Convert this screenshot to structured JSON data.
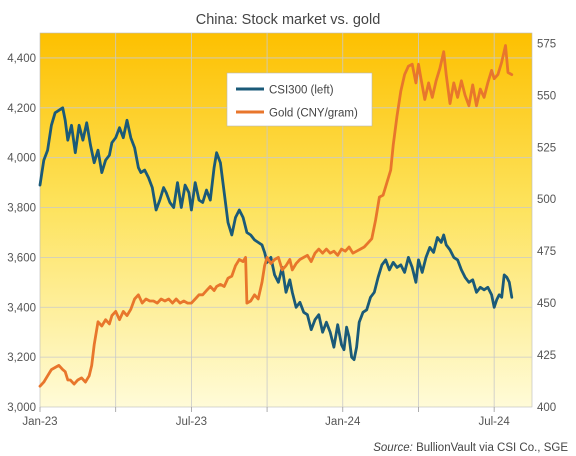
{
  "chart_data": {
    "type": "line",
    "title": "China: Stock market vs. gold",
    "source_label": "Source:",
    "source_text": "BullionVault via CSI Co., SGE",
    "left_axis": {
      "ylim": [
        3000,
        4500
      ],
      "ticks": [
        3000,
        3200,
        3400,
        3600,
        3800,
        4000,
        4200,
        4400
      ],
      "tick_labels": [
        "3,000",
        "3,200",
        "3,400",
        "3,600",
        "3,800",
        "4,000",
        "4,200",
        "4,400"
      ]
    },
    "right_axis": {
      "ylim": [
        400,
        580
      ],
      "ticks": [
        400,
        425,
        450,
        475,
        500,
        525,
        550,
        575
      ],
      "tick_labels": [
        "400",
        "425",
        "450",
        "475",
        "500",
        "525",
        "550",
        "575"
      ]
    },
    "x_axis": {
      "xlim": [
        0,
        19.5
      ],
      "ticks": [
        0,
        3,
        6,
        9,
        12,
        15,
        18
      ],
      "tick_labels": [
        "Jan-23",
        "",
        "Jul-23",
        "",
        "Jan-24",
        "",
        "Jul-24"
      ]
    },
    "grid": true,
    "legend": "top-center",
    "series": [
      {
        "name": "CSI300 (left)",
        "axis": "left",
        "color": "#1a5a78",
        "points": [
          [
            0.0,
            3890
          ],
          [
            0.15,
            3990
          ],
          [
            0.3,
            4030
          ],
          [
            0.45,
            4130
          ],
          [
            0.6,
            4180
          ],
          [
            0.75,
            4190
          ],
          [
            0.9,
            4200
          ],
          [
            1.0,
            4150
          ],
          [
            1.1,
            4070
          ],
          [
            1.25,
            4130
          ],
          [
            1.4,
            4020
          ],
          [
            1.55,
            4130
          ],
          [
            1.7,
            4070
          ],
          [
            1.85,
            4140
          ],
          [
            2.0,
            4050
          ],
          [
            2.15,
            3980
          ],
          [
            2.3,
            4030
          ],
          [
            2.45,
            3940
          ],
          [
            2.6,
            3990
          ],
          [
            2.75,
            4010
          ],
          [
            2.85,
            4060
          ],
          [
            3.0,
            4080
          ],
          [
            3.15,
            4120
          ],
          [
            3.3,
            4080
          ],
          [
            3.45,
            4150
          ],
          [
            3.6,
            4080
          ],
          [
            3.75,
            4040
          ],
          [
            3.9,
            3960
          ],
          [
            4.0,
            3940
          ],
          [
            4.15,
            3950
          ],
          [
            4.3,
            3920
          ],
          [
            4.45,
            3880
          ],
          [
            4.6,
            3790
          ],
          [
            4.75,
            3830
          ],
          [
            4.9,
            3880
          ],
          [
            5.0,
            3860
          ],
          [
            5.15,
            3820
          ],
          [
            5.3,
            3800
          ],
          [
            5.45,
            3900
          ],
          [
            5.6,
            3800
          ],
          [
            5.75,
            3890
          ],
          [
            5.9,
            3860
          ],
          [
            6.0,
            3790
          ],
          [
            6.15,
            3900
          ],
          [
            6.3,
            3830
          ],
          [
            6.45,
            3820
          ],
          [
            6.6,
            3870
          ],
          [
            6.75,
            3830
          ],
          [
            6.9,
            3960
          ],
          [
            7.0,
            4020
          ],
          [
            7.15,
            3980
          ],
          [
            7.3,
            3860
          ],
          [
            7.45,
            3740
          ],
          [
            7.6,
            3690
          ],
          [
            7.75,
            3760
          ],
          [
            7.9,
            3790
          ],
          [
            8.05,
            3760
          ],
          [
            8.2,
            3700
          ],
          [
            8.35,
            3690
          ],
          [
            8.5,
            3670
          ],
          [
            8.65,
            3660
          ],
          [
            8.8,
            3650
          ],
          [
            8.9,
            3620
          ],
          [
            9.0,
            3580
          ],
          [
            9.15,
            3600
          ],
          [
            9.3,
            3530
          ],
          [
            9.45,
            3500
          ],
          [
            9.6,
            3560
          ],
          [
            9.75,
            3460
          ],
          [
            9.9,
            3510
          ],
          [
            10.0,
            3460
          ],
          [
            10.15,
            3400
          ],
          [
            10.3,
            3420
          ],
          [
            10.45,
            3380
          ],
          [
            10.6,
            3370
          ],
          [
            10.75,
            3310
          ],
          [
            10.9,
            3350
          ],
          [
            11.05,
            3370
          ],
          [
            11.2,
            3300
          ],
          [
            11.35,
            3340
          ],
          [
            11.5,
            3300
          ],
          [
            11.65,
            3240
          ],
          [
            11.8,
            3330
          ],
          [
            11.95,
            3250
          ],
          [
            12.05,
            3230
          ],
          [
            12.15,
            3320
          ],
          [
            12.25,
            3280
          ],
          [
            12.35,
            3200
          ],
          [
            12.45,
            3190
          ],
          [
            12.55,
            3240
          ],
          [
            12.65,
            3340
          ],
          [
            12.8,
            3380
          ],
          [
            12.95,
            3390
          ],
          [
            13.1,
            3440
          ],
          [
            13.25,
            3460
          ],
          [
            13.4,
            3520
          ],
          [
            13.55,
            3570
          ],
          [
            13.7,
            3590
          ],
          [
            13.85,
            3550
          ],
          [
            14.0,
            3580
          ],
          [
            14.15,
            3560
          ],
          [
            14.3,
            3570
          ],
          [
            14.45,
            3540
          ],
          [
            14.6,
            3600
          ],
          [
            14.75,
            3560
          ],
          [
            14.9,
            3500
          ],
          [
            15.0,
            3590
          ],
          [
            15.15,
            3540
          ],
          [
            15.3,
            3600
          ],
          [
            15.45,
            3640
          ],
          [
            15.6,
            3620
          ],
          [
            15.75,
            3680
          ],
          [
            15.9,
            3660
          ],
          [
            16.0,
            3690
          ],
          [
            16.1,
            3650
          ],
          [
            16.25,
            3630
          ],
          [
            16.4,
            3600
          ],
          [
            16.55,
            3590
          ],
          [
            16.7,
            3550
          ],
          [
            16.85,
            3520
          ],
          [
            17.0,
            3500
          ],
          [
            17.15,
            3510
          ],
          [
            17.3,
            3460
          ],
          [
            17.45,
            3480
          ],
          [
            17.6,
            3470
          ],
          [
            17.75,
            3480
          ],
          [
            17.9,
            3450
          ],
          [
            18.0,
            3400
          ],
          [
            18.1,
            3430
          ],
          [
            18.2,
            3450
          ],
          [
            18.3,
            3440
          ],
          [
            18.4,
            3530
          ],
          [
            18.5,
            3520
          ],
          [
            18.6,
            3500
          ],
          [
            18.7,
            3440
          ]
        ]
      },
      {
        "name": "Gold (CNY/gram)",
        "axis": "right",
        "color": "#e8762c",
        "points": [
          [
            0.0,
            410
          ],
          [
            0.15,
            412
          ],
          [
            0.3,
            415
          ],
          [
            0.45,
            418
          ],
          [
            0.6,
            419
          ],
          [
            0.75,
            420
          ],
          [
            0.9,
            418
          ],
          [
            1.0,
            417
          ],
          [
            1.1,
            413
          ],
          [
            1.2,
            413
          ],
          [
            1.35,
            411
          ],
          [
            1.5,
            413
          ],
          [
            1.65,
            414
          ],
          [
            1.8,
            412
          ],
          [
            1.95,
            415
          ],
          [
            2.05,
            420
          ],
          [
            2.15,
            430
          ],
          [
            2.3,
            441
          ],
          [
            2.45,
            439
          ],
          [
            2.6,
            442
          ],
          [
            2.75,
            440
          ],
          [
            2.85,
            444
          ],
          [
            3.0,
            446
          ],
          [
            3.15,
            442
          ],
          [
            3.3,
            446
          ],
          [
            3.45,
            444
          ],
          [
            3.6,
            447
          ],
          [
            3.75,
            452
          ],
          [
            3.9,
            454
          ],
          [
            4.05,
            450
          ],
          [
            4.2,
            452
          ],
          [
            4.35,
            451
          ],
          [
            4.5,
            451
          ],
          [
            4.65,
            450
          ],
          [
            4.8,
            452
          ],
          [
            4.95,
            451
          ],
          [
            5.1,
            452
          ],
          [
            5.25,
            450
          ],
          [
            5.4,
            452
          ],
          [
            5.55,
            450
          ],
          [
            5.7,
            451
          ],
          [
            5.85,
            450
          ],
          [
            6.0,
            450
          ],
          [
            6.15,
            452
          ],
          [
            6.3,
            454
          ],
          [
            6.45,
            454
          ],
          [
            6.6,
            456
          ],
          [
            6.75,
            458
          ],
          [
            6.9,
            456
          ],
          [
            7.0,
            458
          ],
          [
            7.15,
            459
          ],
          [
            7.3,
            458
          ],
          [
            7.45,
            462
          ],
          [
            7.6,
            463
          ],
          [
            7.75,
            468
          ],
          [
            7.9,
            471
          ],
          [
            8.05,
            470
          ],
          [
            8.15,
            472
          ],
          [
            8.2,
            450
          ],
          [
            8.35,
            451
          ],
          [
            8.5,
            454
          ],
          [
            8.65,
            452
          ],
          [
            8.8,
            460
          ],
          [
            8.9,
            468
          ],
          [
            9.0,
            472
          ],
          [
            9.15,
            469
          ],
          [
            9.3,
            471
          ],
          [
            9.45,
            472
          ],
          [
            9.6,
            466
          ],
          [
            9.75,
            468
          ],
          [
            9.9,
            471
          ],
          [
            10.0,
            466
          ],
          [
            10.15,
            469
          ],
          [
            10.3,
            471
          ],
          [
            10.45,
            472
          ],
          [
            10.6,
            473
          ],
          [
            10.75,
            470
          ],
          [
            10.9,
            474
          ],
          [
            11.05,
            476
          ],
          [
            11.2,
            474
          ],
          [
            11.35,
            476
          ],
          [
            11.5,
            474
          ],
          [
            11.65,
            475
          ],
          [
            11.8,
            473
          ],
          [
            11.95,
            476
          ],
          [
            12.1,
            475
          ],
          [
            12.25,
            477
          ],
          [
            12.4,
            474
          ],
          [
            12.55,
            475
          ],
          [
            12.7,
            476
          ],
          [
            12.85,
            477
          ],
          [
            13.0,
            479
          ],
          [
            13.15,
            481
          ],
          [
            13.3,
            490
          ],
          [
            13.45,
            501
          ],
          [
            13.6,
            502
          ],
          [
            13.75,
            508
          ],
          [
            13.9,
            514
          ],
          [
            14.0,
            526
          ],
          [
            14.15,
            540
          ],
          [
            14.3,
            552
          ],
          [
            14.45,
            560
          ],
          [
            14.6,
            564
          ],
          [
            14.75,
            565
          ],
          [
            14.9,
            556
          ],
          [
            15.0,
            565
          ],
          [
            15.1,
            558
          ],
          [
            15.25,
            548
          ],
          [
            15.4,
            556
          ],
          [
            15.55,
            549
          ],
          [
            15.7,
            557
          ],
          [
            15.85,
            563
          ],
          [
            16.0,
            571
          ],
          [
            16.1,
            560
          ],
          [
            16.25,
            546
          ],
          [
            16.4,
            556
          ],
          [
            16.55,
            549
          ],
          [
            16.7,
            557
          ],
          [
            16.85,
            550
          ],
          [
            17.0,
            545
          ],
          [
            17.15,
            555
          ],
          [
            17.3,
            545
          ],
          [
            17.45,
            553
          ],
          [
            17.6,
            549
          ],
          [
            17.75,
            556
          ],
          [
            17.9,
            562
          ],
          [
            18.0,
            558
          ],
          [
            18.15,
            560
          ],
          [
            18.3,
            566
          ],
          [
            18.45,
            574
          ],
          [
            18.55,
            561
          ],
          [
            18.7,
            560
          ]
        ]
      }
    ]
  }
}
